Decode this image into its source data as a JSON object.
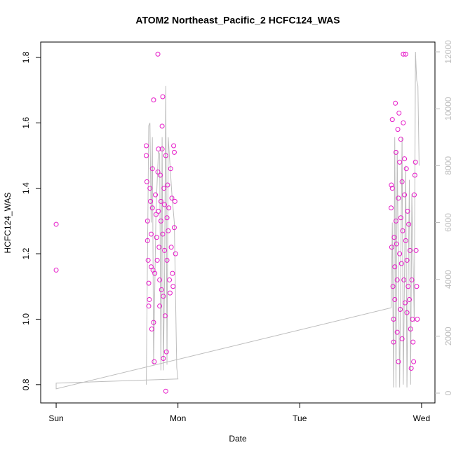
{
  "chart_data": {
    "type": "scatter",
    "title": "ATOM2 Northeast_Pacific_2 HCFC124_WAS",
    "x_label": "Date",
    "y_label": "HCFC124_WAS",
    "xlim": [
      -0.127,
      3.11
    ],
    "ylim": [
      0.744,
      1.847
    ],
    "y2lim": [
      -345,
      12345
    ],
    "xticks": [
      {
        "value": 0,
        "label": "Sun"
      },
      {
        "value": 1,
        "label": "Mon"
      },
      {
        "value": 2,
        "label": "Tue"
      },
      {
        "value": 3,
        "label": "Wed"
      }
    ],
    "yticks": [
      0.8,
      {
        "value": 1,
        "label": "1.0"
      },
      1.2,
      1.4,
      1.6,
      1.8
    ],
    "y2ticks": [
      0,
      2000,
      4000,
      6000,
      8000,
      10000,
      12000
    ],
    "series": [
      {
        "type": "line",
        "axis": "y2",
        "color": "#bdbdbd",
        "x": [
          0.74,
          0.76,
          0.77,
          0.78,
          0.79,
          0.8,
          0.82,
          0.84,
          0.85,
          0.86,
          0.87,
          0.88,
          0.89,
          0.9,
          0.91,
          0.92,
          0.95,
          0.97,
          0.99,
          1.0,
          0,
          0,
          2.75,
          2.76,
          2.77,
          2.78,
          2.79,
          2.8,
          2.82,
          2.84,
          2.85,
          2.87,
          2.88,
          2.9,
          2.91,
          2.92,
          2.94,
          2.95,
          2.96,
          2.97,
          2.98
        ],
        "values": [
          300,
          9400,
          9500,
          6000,
          9000,
          1000,
          6500,
          8500,
          8400,
          800,
          9000,
          800,
          4000,
          10800,
          1000,
          9000,
          7000,
          6000,
          900,
          500,
          350,
          150,
          3000,
          6000,
          200,
          9000,
          200,
          8500,
          200,
          9000,
          300,
          8000,
          200,
          7500,
          300,
          7000,
          2500,
          12000,
          11000,
          10800,
          8000
        ]
      },
      {
        "type": "scatter",
        "color": "#e619c8",
        "x": [
          0,
          0,
          0.74,
          0.74,
          0.745,
          0.75,
          0.75,
          0.755,
          0.76,
          0.76,
          0.765,
          0.77,
          0.775,
          0.78,
          0.78,
          0.785,
          0.79,
          0.79,
          0.795,
          0.8,
          0.8,
          0.805,
          0.81,
          0.815,
          0.82,
          0.825,
          0.83,
          0.835,
          0.835,
          0.84,
          0.84,
          0.845,
          0.85,
          0.85,
          0.855,
          0.86,
          0.86,
          0.865,
          0.87,
          0.87,
          0.875,
          0.875,
          0.88,
          0.88,
          0.885,
          0.89,
          0.89,
          0.895,
          0.9,
          0.9,
          0.905,
          0.91,
          0.91,
          0.915,
          0.92,
          0.925,
          0.93,
          0.935,
          0.94,
          0.945,
          0.95,
          0.955,
          0.96,
          0.965,
          0.97,
          0.97,
          0.975,
          0.98,
          2.75,
          2.752,
          2.755,
          2.76,
          2.76,
          2.765,
          2.77,
          2.77,
          2.775,
          2.78,
          2.78,
          2.785,
          2.79,
          2.79,
          2.795,
          2.8,
          2.8,
          2.805,
          2.81,
          2.81,
          2.815,
          2.82,
          2.82,
          2.825,
          2.83,
          2.83,
          2.835,
          2.84,
          2.84,
          2.845,
          2.85,
          2.85,
          2.855,
          2.86,
          2.86,
          2.865,
          2.87,
          2.87,
          2.875,
          2.88,
          2.88,
          2.885,
          2.89,
          2.895,
          2.9,
          2.905,
          2.91,
          2.915,
          2.92,
          2.925,
          2.93,
          2.935,
          2.94,
          2.945,
          2.95,
          2.955,
          2.96,
          2.965
        ],
        "values": [
          1.29,
          1.15,
          1.53,
          1.5,
          1.42,
          1.3,
          1.24,
          1.18,
          1.11,
          1.04,
          1.06,
          1.4,
          1.36,
          1.26,
          1.16,
          0.97,
          1.46,
          1.34,
          1.15,
          0.99,
          1.67,
          0.87,
          1.14,
          1.38,
          1.32,
          1.25,
          1.18,
          1.81,
          1.45,
          1.52,
          1.33,
          1.22,
          1.12,
          1.04,
          1.44,
          1.36,
          1.3,
          1.09,
          1.52,
          1.59,
          1.68,
          1.26,
          1.07,
          0.88,
          1.4,
          1.35,
          1.21,
          1.01,
          0.78,
          1.5,
          0.9,
          1.31,
          1.18,
          1.41,
          1.27,
          1.34,
          1.12,
          1.08,
          1.46,
          1.22,
          1.37,
          1.14,
          1.1,
          1.53,
          1.51,
          1.28,
          1.36,
          1.2,
          1.34,
          1.41,
          1.22,
          1.61,
          1.4,
          1.1,
          1.0,
          0.93,
          1.25,
          1.16,
          1.06,
          1.66,
          1.51,
          1.3,
          1.23,
          1.12,
          0.96,
          1.58,
          1.37,
          0.87,
          1.63,
          1.48,
          1.2,
          1.03,
          1.55,
          1.31,
          1.17,
          0.94,
          1.42,
          1.27,
          1.6,
          1.81,
          1.12,
          1.49,
          1.38,
          1.05,
          1.81,
          1.24,
          1.46,
          1.18,
          1.02,
          1.33,
          1.1,
          1.29,
          1.06,
          1.21,
          0.97,
          0.85,
          1.12,
          1.0,
          0.93,
          0.87,
          1.38,
          1.44,
          1.48,
          1.21,
          1.1,
          1.0
        ]
      }
    ]
  }
}
